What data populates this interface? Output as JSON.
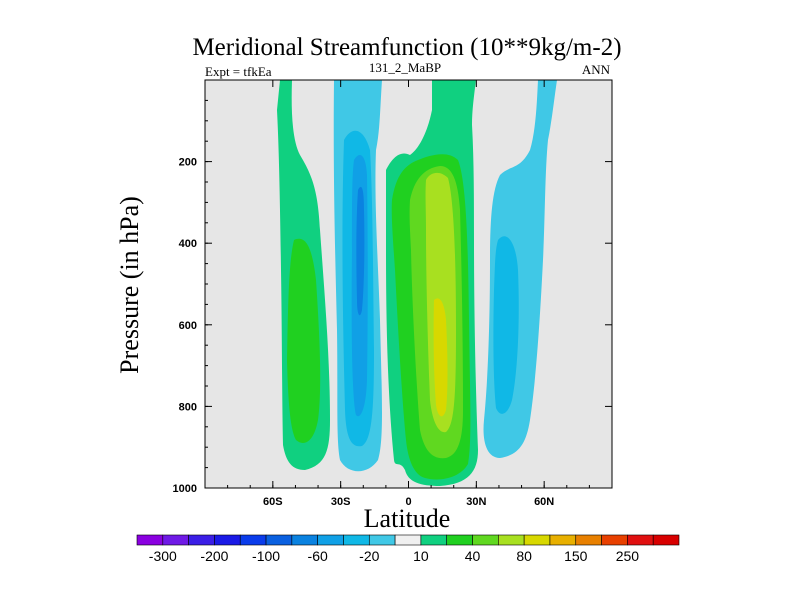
{
  "chart_data": {
    "type": "contour",
    "title": "Meridional Streamfunction (10**9kg/m-2)",
    "left_string": "Expt = tfkEa",
    "center_string": "131_2_MaBP",
    "right_string": "ANN",
    "xlabel": "Latitude",
    "ylabel": "Pressure (in hPa)",
    "xlim": [
      -90,
      90
    ],
    "ylim": [
      1000,
      0
    ],
    "x_ticks": [
      {
        "value": -60,
        "label": "60S"
      },
      {
        "value": -30,
        "label": "30S"
      },
      {
        "value": 0,
        "label": "0"
      },
      {
        "value": 30,
        "label": "30N"
      },
      {
        "value": 60,
        "label": "60N"
      }
    ],
    "y_ticks": [
      {
        "value": 200,
        "label": "200"
      },
      {
        "value": 400,
        "label": "400"
      },
      {
        "value": 600,
        "label": "600"
      },
      {
        "value": 800,
        "label": "800"
      },
      {
        "value": 1000,
        "label": "1000"
      }
    ],
    "missing_color": "#e6e6e6",
    "colorbar": {
      "levels": [
        -300,
        -250,
        -200,
        -150,
        -100,
        -80,
        -60,
        -40,
        -20,
        -10,
        10,
        20,
        40,
        60,
        80,
        100,
        150,
        200,
        250,
        300
      ],
      "labels": [
        "-300",
        "-200",
        "-100",
        "-60",
        "-20",
        "10",
        "40",
        "80",
        "150",
        "250"
      ],
      "label_levels": [
        -300,
        -200,
        -100,
        -60,
        -20,
        10,
        40,
        80,
        150,
        250
      ],
      "colors": [
        "#8a00e0",
        "#6f1ae6",
        "#3b1ee6",
        "#1a1ae6",
        "#0a3ceb",
        "#0a60e0",
        "#0a82e0",
        "#10a0e6",
        "#10b8e6",
        "#40c8e6",
        "#f0f0f0",
        "#10d080",
        "#20d020",
        "#60d820",
        "#a8e020",
        "#d8d800",
        "#e8b000",
        "#e88000",
        "#e84000",
        "#e01010",
        "#d80000"
      ]
    },
    "features": [
      {
        "label": "SH positive cell",
        "lat_range": [
          -58,
          -38
        ],
        "p_range": [
          20,
          950
        ],
        "value_level": 10
      },
      {
        "label": "SH negative cell",
        "lat_range": [
          -34,
          -12
        ],
        "p_range": [
          20,
          960
        ],
        "value_level": -20
      },
      {
        "label": "NH positive cell",
        "lat_range": [
          -6,
          30
        ],
        "p_range": [
          20,
          985
        ],
        "value_level": 80
      },
      {
        "label": "NH negative cell",
        "lat_range": [
          34,
          54
        ],
        "p_range": [
          20,
          950
        ],
        "value_level": -20
      }
    ]
  }
}
